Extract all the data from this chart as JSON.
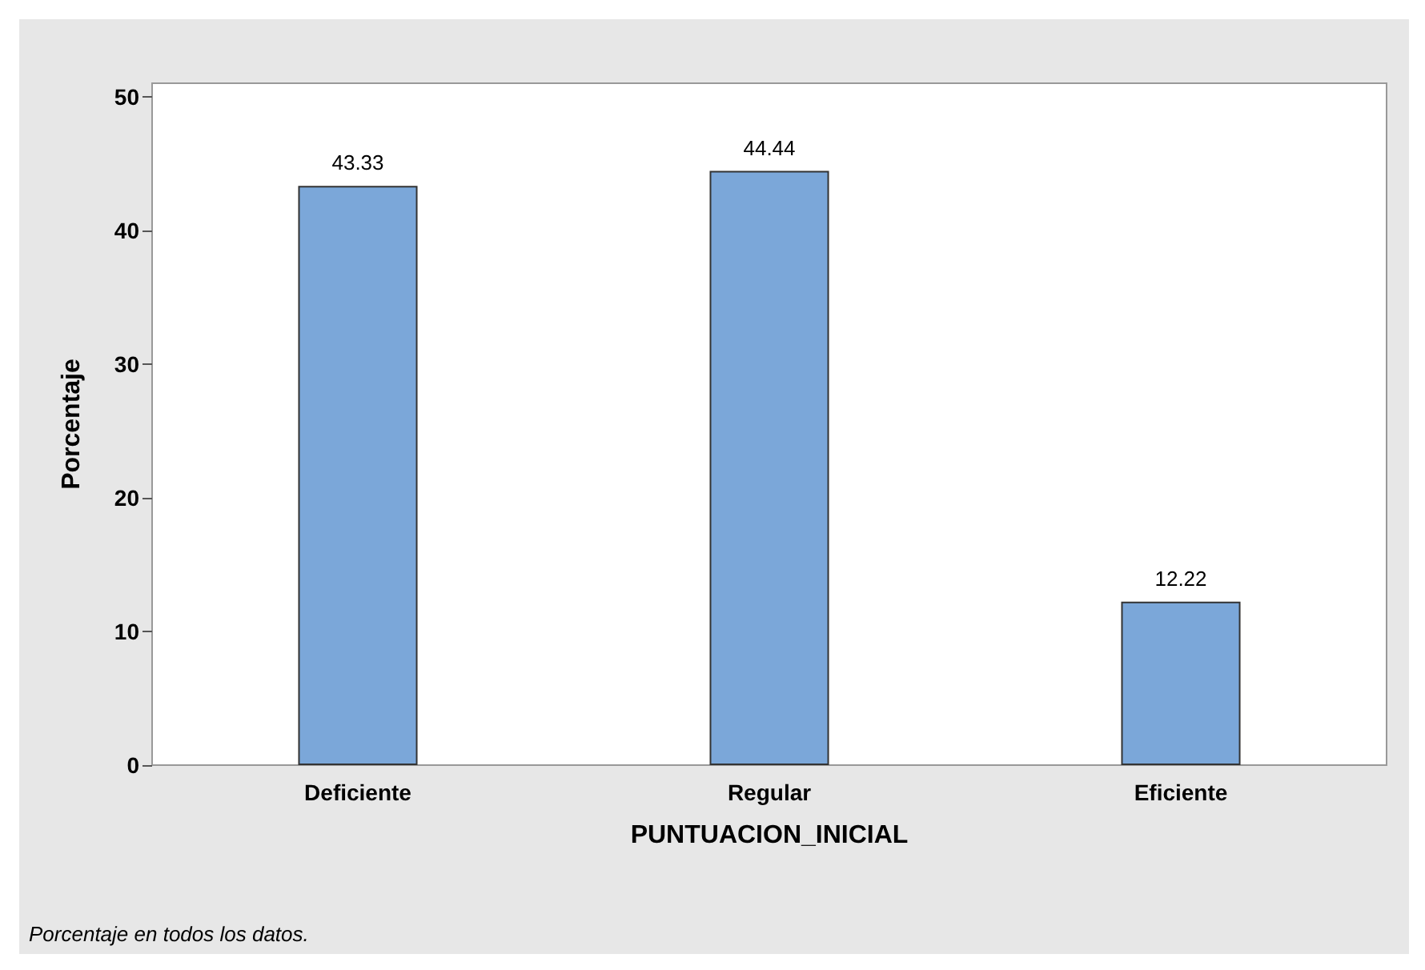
{
  "chart_data": {
    "type": "bar",
    "xlabel": "PUNTUACION_INICIAL",
    "ylabel": "Porcentaje",
    "categories": [
      "Deficiente",
      "Regular",
      "Eficiente"
    ],
    "values": [
      43.33,
      44.44,
      12.22
    ],
    "color": "#7ba7d9",
    "ylim": [
      0,
      51
    ],
    "yticks": [
      0,
      10,
      20,
      30,
      40,
      50
    ],
    "grid": false,
    "data_labels": true,
    "annotations": [
      "Porcentaje en todos los datos."
    ]
  }
}
